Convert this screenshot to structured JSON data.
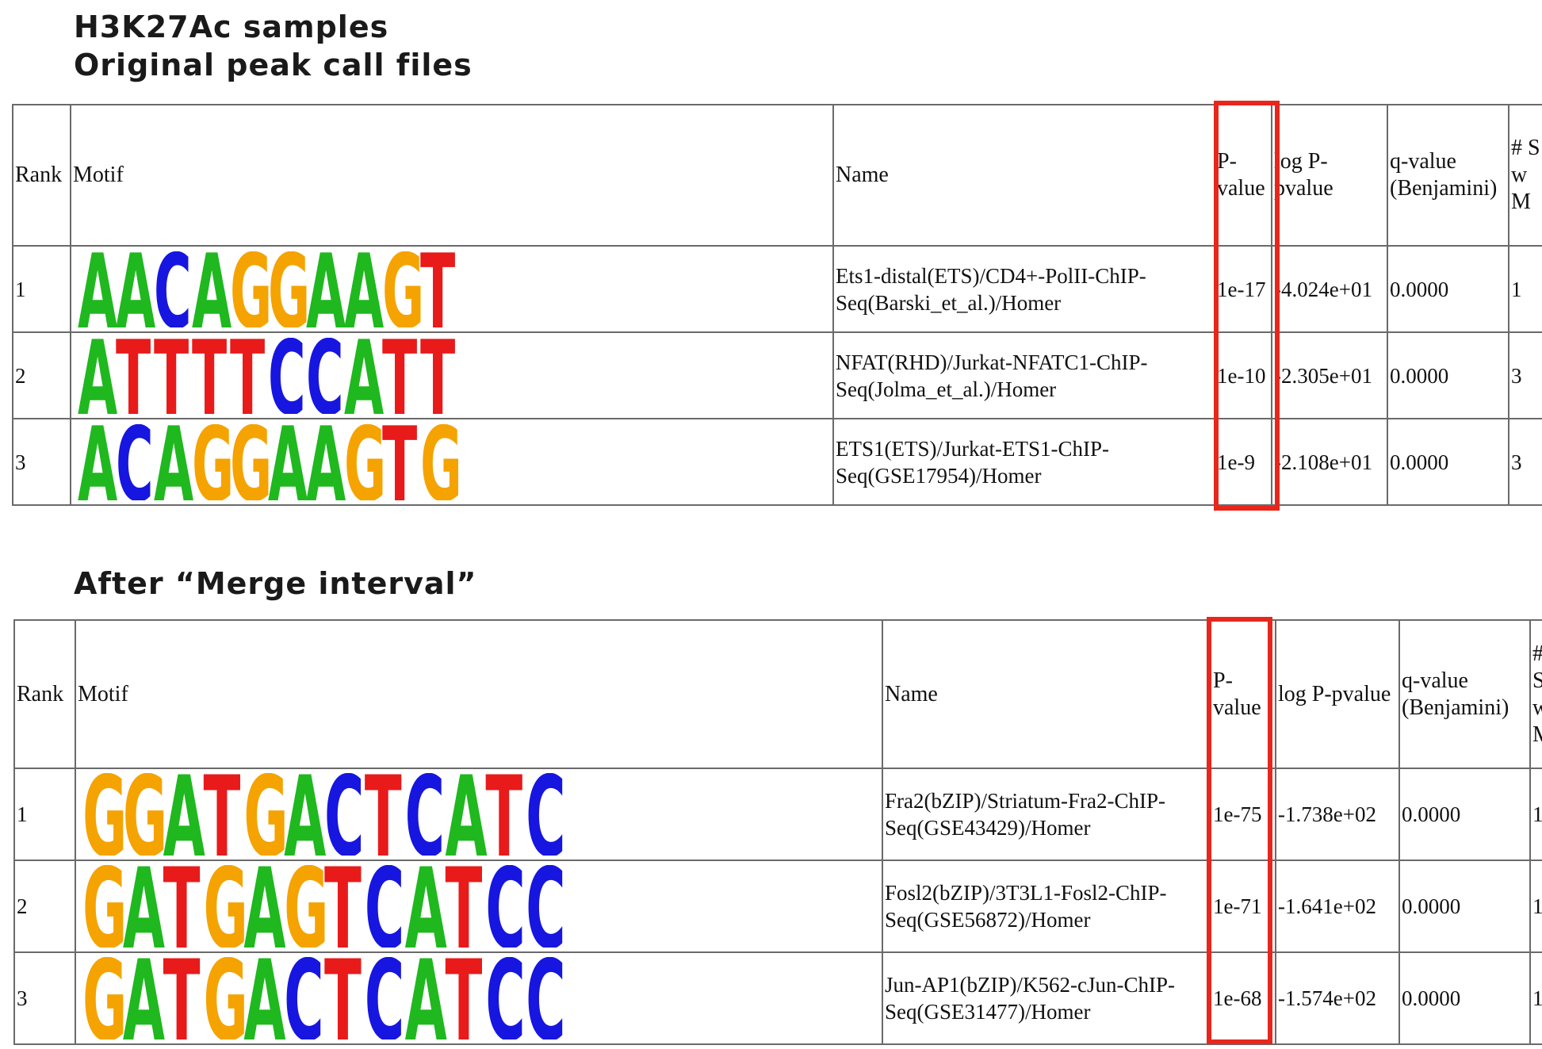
{
  "page": {
    "title_line1": "H3K27Ac samples",
    "title_line2": "Original peak call files",
    "section2_title": "After “Merge interval”"
  },
  "colors": {
    "A": "#1fb81f",
    "C": "#1616e0",
    "G": "#f5a300",
    "T": "#e81a1a",
    "highlight": "#e8261c"
  },
  "headers": {
    "rank": "Rank",
    "motif": "Motif",
    "name": "Name",
    "pvalue": "P-value",
    "logp": "log P-pvalue",
    "qvalue": "q-value (Benjamini)",
    "targets": "# S w M"
  },
  "table1": [
    {
      "rank": "1",
      "motif": "AACAGGAAGT",
      "name": "Ets1-distal(ETS)/CD4+-PolII-ChIP-Seq(Barski_et_al.)/Homer",
      "pvalue": "1e-17",
      "logp": "-4.024e+01",
      "qvalue": "0.0000",
      "targets": "1"
    },
    {
      "rank": "2",
      "motif": "ATTTTCCATT",
      "name": "NFAT(RHD)/Jurkat-NFATC1-ChIP-Seq(Jolma_et_al.)/Homer",
      "pvalue": "1e-10",
      "logp": "-2.305e+01",
      "qvalue": "0.0000",
      "targets": "3"
    },
    {
      "rank": "3",
      "motif": "ACAGGAAGTG",
      "name": "ETS1(ETS)/Jurkat-ETS1-ChIP-Seq(GSE17954)/Homer",
      "pvalue": "1e-9",
      "logp": "-2.108e+01",
      "qvalue": "0.0000",
      "targets": "3"
    }
  ],
  "table2": [
    {
      "rank": "1",
      "motif": "GGATGACTCATC",
      "name": "Fra2(bZIP)/Striatum-Fra2-ChIP-Seq(GSE43429)/Homer",
      "pvalue": "1e-75",
      "logp": "-1.738e+02",
      "qvalue": "0.0000",
      "targets": "1"
    },
    {
      "rank": "2",
      "motif": "GATGAGTCATCC",
      "name": "Fosl2(bZIP)/3T3L1-Fosl2-ChIP-Seq(GSE56872)/Homer",
      "pvalue": "1e-71",
      "logp": "-1.641e+02",
      "qvalue": "0.0000",
      "targets": "1"
    },
    {
      "rank": "3",
      "motif": "GATGACTCATCC",
      "name": "Jun-AP1(bZIP)/K562-cJun-ChIP-Seq(GSE31477)/Homer",
      "pvalue": "1e-68",
      "logp": "-1.574e+02",
      "qvalue": "0.0000",
      "targets": "1"
    }
  ]
}
